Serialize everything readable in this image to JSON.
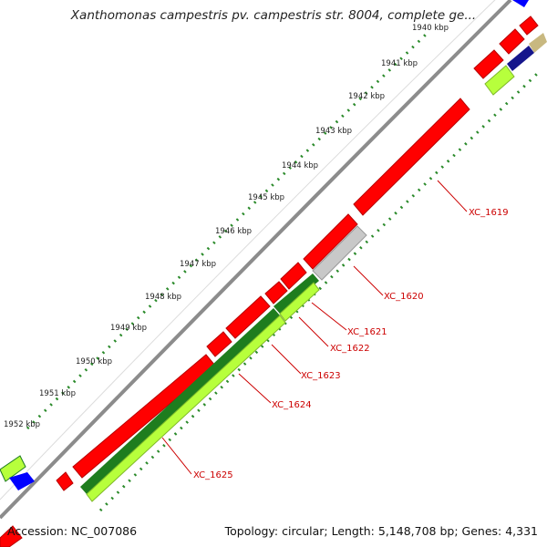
{
  "title": "Xanthomonas campestris pv. campestris str. 8004, complete ge...",
  "accession_label": "Accession: NC_007086",
  "summary_label": "Topology: circular; Length: 5,148,708 bp; Genes: 4,331",
  "colors": {
    "backbone": "#8c8c8c",
    "forward_gene": "#ff0000",
    "forward_gene_shade": "#b80000",
    "reverse_gene_dark": "#1e7d1e",
    "reverse_gene_light": "#b7ff3c",
    "pseudo_gene": "#c8c8c8",
    "tick": "#2a8a2a",
    "label": "#cc0000"
  },
  "ticks": [
    "1940 kbp",
    "1941 kbp",
    "1942 kbp",
    "1943 kbp",
    "1944 kbp",
    "1945 kbp",
    "1946 kbp",
    "1947 kbp",
    "1948 kbp",
    "1949 kbp",
    "1950 kbp",
    "1951 kbp",
    "1952 kbp"
  ],
  "gene_labels": [
    "XC_1619",
    "XC_1620",
    "XC_1621",
    "XC_1622",
    "XC_1623",
    "XC_1624",
    "XC_1625"
  ]
}
